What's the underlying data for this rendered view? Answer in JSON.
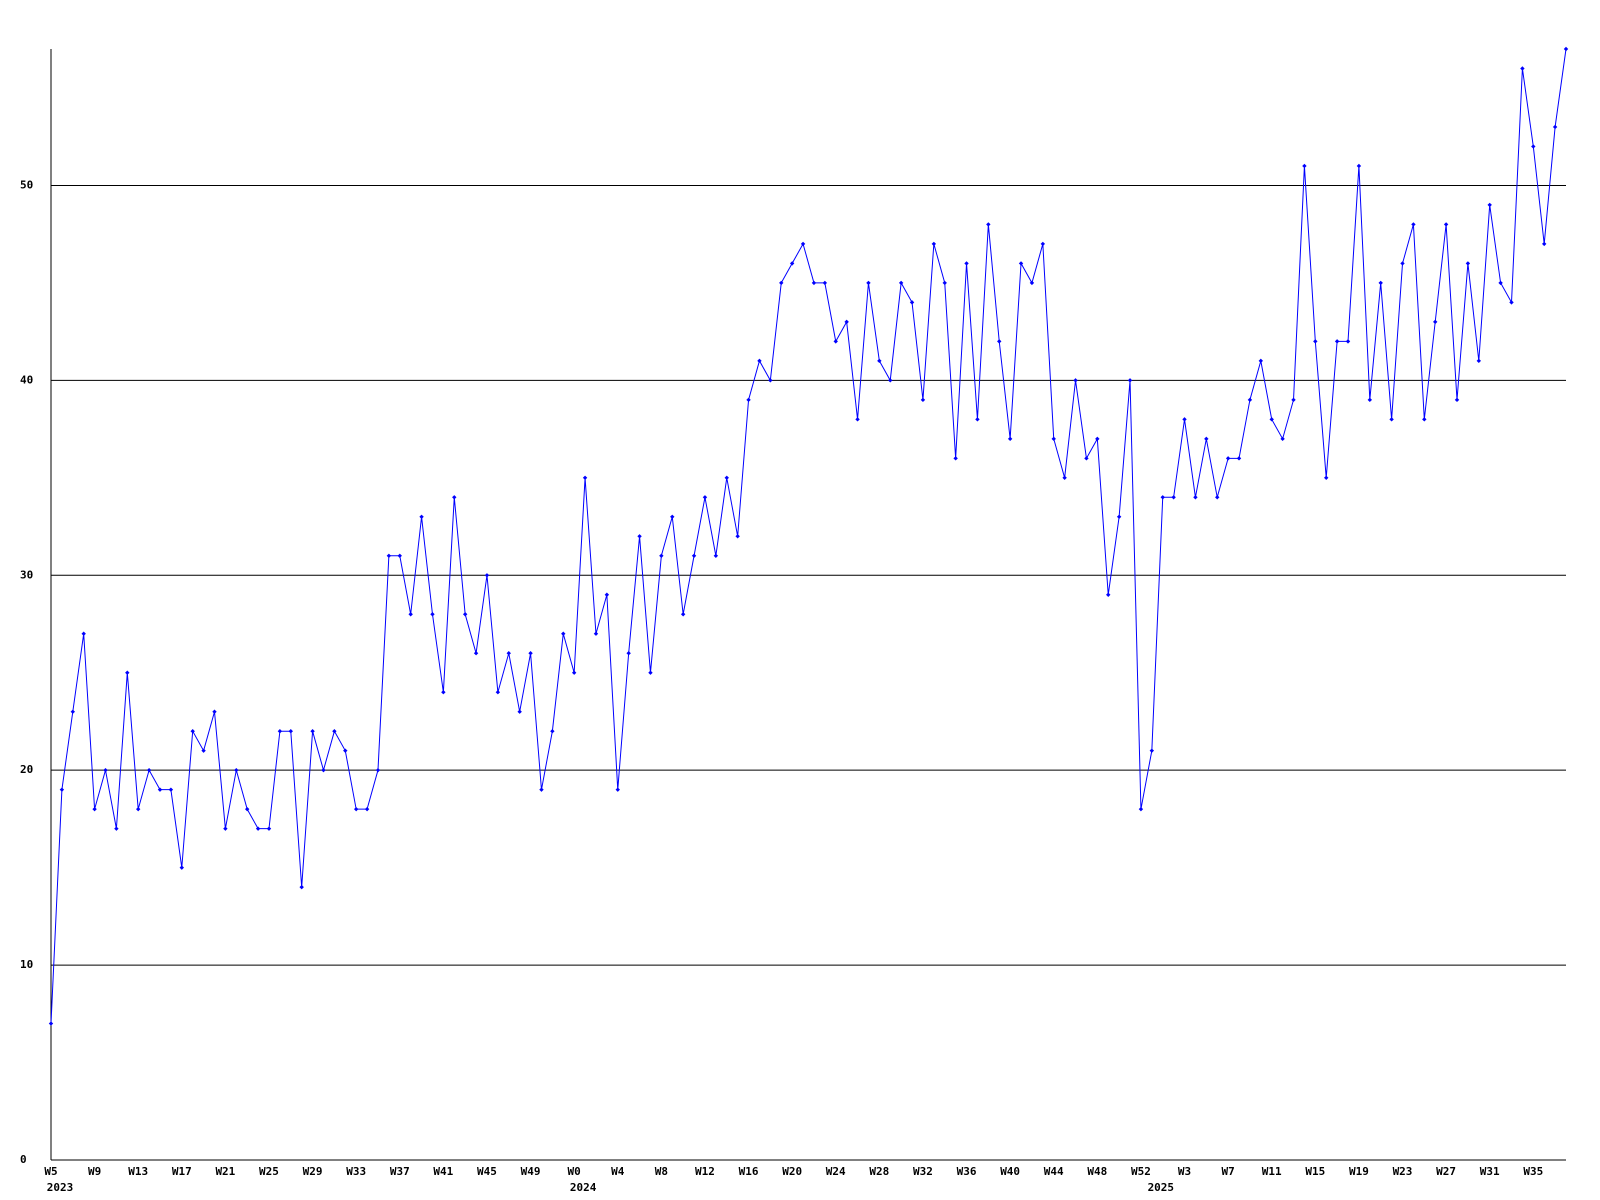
{
  "chart_data": {
    "type": "line",
    "color": "#0000ff",
    "grid": true,
    "ylim": [
      0,
      57
    ],
    "yticks": [
      0,
      10,
      20,
      30,
      40,
      50
    ],
    "categories": [
      "W5",
      null,
      null,
      null,
      "W9",
      null,
      null,
      null,
      "W13",
      null,
      null,
      null,
      "W17",
      null,
      null,
      null,
      "W21",
      null,
      null,
      null,
      "W25",
      null,
      null,
      null,
      "W29",
      null,
      null,
      null,
      "W33",
      null,
      null,
      null,
      "W37",
      null,
      null,
      null,
      "W41",
      null,
      null,
      null,
      "W45",
      null,
      null,
      null,
      "W49",
      null,
      null,
      null,
      "W0",
      null,
      null,
      null,
      "W4",
      null,
      null,
      null,
      "W8",
      null,
      null,
      null,
      "W12",
      null,
      null,
      null,
      "W16",
      null,
      null,
      null,
      "W20",
      null,
      null,
      null,
      "W24",
      null,
      null,
      null,
      "W28",
      null,
      null,
      null,
      "W32",
      null,
      null,
      null,
      "W36",
      null,
      null,
      null,
      "W40",
      null,
      null,
      null,
      "W44",
      null,
      null,
      null,
      "W48",
      null,
      null,
      null,
      "W52",
      null,
      null,
      null,
      "W3",
      null,
      null,
      null,
      "W7",
      null,
      null,
      null,
      "W11",
      null,
      null,
      null,
      "W15",
      null,
      null,
      null,
      "W19",
      null,
      null,
      null,
      "W23",
      null,
      null,
      null,
      "W27",
      null,
      null,
      null,
      "W31",
      null,
      null,
      null,
      "W35",
      null,
      null,
      null
    ],
    "year_labels": [
      "2023",
      null,
      null,
      null,
      null,
      null,
      null,
      null,
      null,
      null,
      null,
      null,
      null,
      null,
      null,
      null,
      null,
      null,
      null,
      null,
      null,
      null,
      null,
      null,
      null,
      null,
      null,
      null,
      null,
      null,
      null,
      null,
      null,
      null,
      null,
      null,
      null,
      null,
      null,
      null,
      null,
      null,
      null,
      null,
      null,
      null,
      null,
      null,
      "2024",
      null,
      null,
      null,
      null,
      null,
      null,
      null,
      null,
      null,
      null,
      null,
      null,
      null,
      null,
      null,
      null,
      null,
      null,
      null,
      null,
      null,
      null,
      null,
      null,
      null,
      null,
      null,
      null,
      null,
      null,
      null,
      null,
      null,
      null,
      null,
      null,
      null,
      null,
      null,
      null,
      null,
      null,
      null,
      null,
      null,
      null,
      null,
      null,
      null,
      null,
      null,
      null,
      "2025",
      null,
      null,
      null,
      null,
      null,
      null,
      null,
      null,
      null,
      null,
      null,
      null,
      null,
      null,
      null,
      null,
      null,
      null,
      null,
      null,
      null,
      null,
      null,
      null,
      null,
      null,
      null,
      null,
      null,
      null,
      null,
      null,
      null,
      null,
      null,
      null,
      null,
      null
    ],
    "values": [
      7,
      19,
      23,
      27,
      18,
      20,
      17,
      25,
      18,
      20,
      19,
      19,
      15,
      22,
      21,
      23,
      17,
      20,
      18,
      17,
      17,
      22,
      22,
      14,
      22,
      20,
      22,
      21,
      18,
      18,
      20,
      31,
      31,
      28,
      33,
      28,
      24,
      34,
      28,
      26,
      30,
      24,
      26,
      23,
      26,
      19,
      22,
      27,
      25,
      35,
      27,
      29,
      19,
      26,
      32,
      25,
      31,
      33,
      28,
      31,
      34,
      31,
      35,
      32,
      39,
      41,
      40,
      45,
      46,
      47,
      45,
      45,
      42,
      43,
      38,
      45,
      41,
      40,
      45,
      44,
      39,
      47,
      45,
      36,
      46,
      38,
      48,
      42,
      37,
      46,
      45,
      47,
      37,
      35,
      40,
      36,
      37,
      29,
      33,
      40,
      18,
      21,
      34,
      34,
      38,
      34,
      37,
      34,
      36,
      36,
      39,
      41,
      38,
      37,
      39,
      51,
      42,
      35,
      42,
      42,
      51,
      39,
      45,
      38,
      46,
      48,
      38,
      43,
      48,
      39,
      46,
      41,
      49,
      45,
      44,
      56,
      52,
      47,
      53,
      57
    ]
  }
}
